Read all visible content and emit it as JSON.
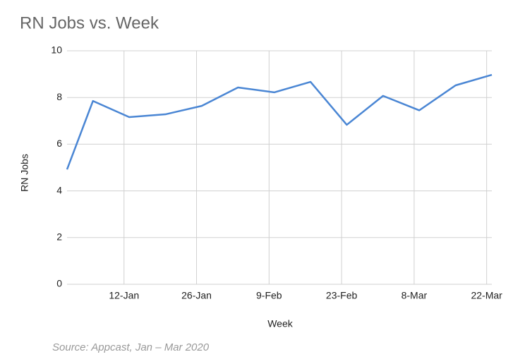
{
  "chart_data": {
    "type": "line",
    "title": "RN Jobs vs. Week",
    "x_label": "Week",
    "y_label": "RN Jobs",
    "source": "Source: Appcast, Jan – Mar 2020",
    "x": [
      1,
      6,
      13,
      20,
      27,
      34,
      41,
      48,
      55,
      62,
      69,
      76,
      83
    ],
    "series": [
      {
        "name": "RN Jobs",
        "color": "#4a86d4",
        "values": [
          4.92,
          7.85,
          7.16,
          7.28,
          7.64,
          8.43,
          8.22,
          8.67,
          6.83,
          8.07,
          7.45,
          8.52,
          8.97
        ]
      }
    ],
    "xlim": [
      1,
      83
    ],
    "xticks": [
      {
        "value": 12,
        "label": "12-Jan"
      },
      {
        "value": 26,
        "label": "26-Jan"
      },
      {
        "value": 40,
        "label": "9-Feb"
      },
      {
        "value": 54,
        "label": "23-Feb"
      },
      {
        "value": 68,
        "label": "8-Mar"
      },
      {
        "value": 82,
        "label": "22-Mar"
      }
    ],
    "ylim": [
      0,
      10
    ],
    "yticks": [
      0,
      2,
      4,
      6,
      8,
      10
    ],
    "grid": true
  }
}
